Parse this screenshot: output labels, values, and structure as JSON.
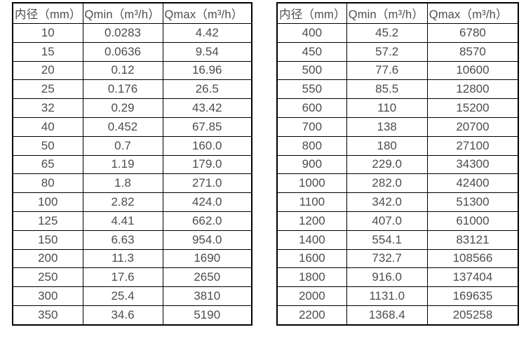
{
  "colors": {
    "border": "#000000",
    "text": "#4d4d4d",
    "background": "#ffffff"
  },
  "table_left": {
    "headers": [
      "内径（mm）",
      "Qmin（m³/h）",
      "Qmax（m³/h）"
    ],
    "rows": [
      [
        "10",
        "0.0283",
        "4.42"
      ],
      [
        "15",
        "0.0636",
        "9.54"
      ],
      [
        "20",
        "0.12",
        "16.96"
      ],
      [
        "25",
        "0.176",
        "26.5"
      ],
      [
        "32",
        "0.29",
        "43.42"
      ],
      [
        "40",
        "0.452",
        "67.85"
      ],
      [
        "50",
        "0.7",
        "160.0"
      ],
      [
        "65",
        "1.19",
        "179.0"
      ],
      [
        "80",
        "1.8",
        "271.0"
      ],
      [
        "100",
        "2.82",
        "424.0"
      ],
      [
        "125",
        "4.41",
        "662.0"
      ],
      [
        "150",
        "6.63",
        "954.0"
      ],
      [
        "200",
        "11.3",
        "1690"
      ],
      [
        "250",
        "17.6",
        "2650"
      ],
      [
        "300",
        "25.4",
        "3810"
      ],
      [
        "350",
        "34.6",
        "5190"
      ]
    ]
  },
  "table_right": {
    "headers": [
      "内径（mm）",
      "Qmin（m³/h）",
      "Qmax（m³/h）"
    ],
    "rows": [
      [
        "400",
        "45.2",
        "6780"
      ],
      [
        "450",
        "57.2",
        "8570"
      ],
      [
        "500",
        "77.6",
        "10600"
      ],
      [
        "550",
        "85.5",
        "12800"
      ],
      [
        "600",
        "110",
        "15200"
      ],
      [
        "700",
        "138",
        "20700"
      ],
      [
        "800",
        "180",
        "27100"
      ],
      [
        "900",
        "229.0",
        "34300"
      ],
      [
        "1000",
        "282.0",
        "42400"
      ],
      [
        "1100",
        "342.0",
        "51300"
      ],
      [
        "1200",
        "407.0",
        "61000"
      ],
      [
        "1400",
        "554.1",
        "83121"
      ],
      [
        "1600",
        "732.7",
        "108566"
      ],
      [
        "1800",
        "916.0",
        "137404"
      ],
      [
        "2000",
        "1131.0",
        "169635"
      ],
      [
        "2200",
        "1368.4",
        "205258"
      ]
    ]
  }
}
